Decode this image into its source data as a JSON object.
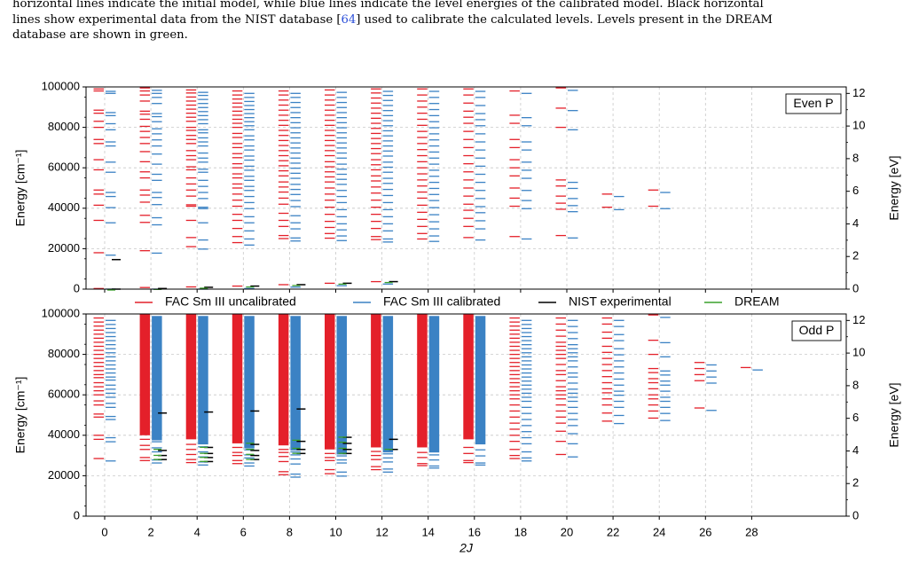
{
  "caption": {
    "line1": "horizontal lines indicate the initial model, while blue lines indicate the level energies of the calibrated model. Black horizontal",
    "line2a": "lines show experimental data from the NIST database [",
    "line2ref": "64",
    "line2b": "] used to calibrate the calculated levels. Levels present in the DREAM",
    "line3": "database are shown in green."
  },
  "colors": {
    "uncalibrated": "#e4202a",
    "calibrated": "#3b82c4",
    "nist": "#000000",
    "dream": "#3aa12c",
    "grid": "#c8c8c8"
  },
  "chart_data": [
    {
      "type": "energy-level diagram",
      "panel_label": "Even P",
      "xlabel": "",
      "ylabel_left": "Energy [cm⁻¹]",
      "ylabel_right": "Energy [eV]",
      "x_ticks": [
        0,
        2,
        4,
        6,
        8,
        10,
        12,
        14,
        16,
        18,
        20,
        22,
        24,
        26,
        28
      ],
      "ylim": [
        0,
        100000
      ],
      "y_ticks": [
        0,
        20000,
        40000,
        60000,
        80000,
        100000
      ],
      "y_tick_labels": [
        "0",
        "20000",
        "40000",
        "60000",
        "80000",
        "100000"
      ],
      "y2_ticks_ev": [
        0,
        2,
        4,
        6,
        8,
        10,
        12
      ],
      "grid": true,
      "columns": [
        {
          "twoJ": 0,
          "levels": [
            300,
            18000,
            34000,
            41500,
            47000,
            49000,
            59000,
            64000,
            72000,
            74000,
            80000,
            83000,
            87000,
            88500,
            98000,
            99000
          ]
        },
        {
          "twoJ": 2,
          "levels": [
            800,
            19000,
            33000,
            36500,
            43000,
            46500,
            49000,
            55000,
            58000,
            63000,
            68000,
            72000,
            75000,
            78000,
            80500,
            84000,
            86500,
            88000,
            93000,
            96000,
            98000,
            99500
          ]
        },
        {
          "twoJ": 4,
          "levels": [
            1100,
            21000,
            25500,
            34000,
            41000,
            41700,
            46000,
            49000,
            52000,
            55000,
            59000,
            60500,
            64000,
            66000,
            68500,
            72000,
            74000,
            76000,
            78500,
            80000,
            83000,
            85000,
            87000,
            89000,
            91000,
            93000,
            95000,
            97000,
            98500
          ]
        },
        {
          "twoJ": 6,
          "levels": [
            1500,
            23000,
            26000,
            30000,
            34000,
            37000,
            41000,
            44000,
            47000,
            50000,
            52000,
            55000,
            57000,
            60000,
            62000,
            65000,
            67000,
            70000,
            72000,
            75000,
            77000,
            80000,
            82000,
            84000,
            86000,
            88000,
            90000,
            92000,
            94000,
            96000,
            98000
          ]
        },
        {
          "twoJ": 8,
          "levels": [
            2200,
            25000,
            26500,
            31000,
            34000,
            37500,
            42000,
            45000,
            48000,
            50500,
            53000,
            56000,
            58500,
            61000,
            63500,
            66000,
            68500,
            71000,
            73500,
            76000,
            78500,
            81000,
            83500,
            86000,
            88500,
            91000,
            93500,
            96000,
            98000
          ]
        },
        {
          "twoJ": 10,
          "levels": [
            2900,
            25200,
            27500,
            30500,
            33500,
            37000,
            40500,
            44000,
            47000,
            50000,
            53000,
            55500,
            58000,
            60500,
            63000,
            66000,
            68500,
            71000,
            73500,
            76000,
            78500,
            81000,
            83500,
            86000,
            88500,
            91000,
            93500,
            96000,
            98500
          ]
        },
        {
          "twoJ": 12,
          "levels": [
            3700,
            24500,
            26000,
            30000,
            33500,
            37000,
            40500,
            44000,
            47500,
            50500,
            53500,
            56000,
            59000,
            61500,
            64000,
            67000,
            69500,
            72000,
            74500,
            77000,
            79500,
            82000,
            84500,
            87000,
            89500,
            92000,
            94500,
            97000,
            99000
          ]
        },
        {
          "twoJ": 14,
          "levels": [
            24800,
            27500,
            31000,
            34500,
            38000,
            41500,
            45000,
            48000,
            51000,
            54000,
            57000,
            60000,
            63000,
            66000,
            69000,
            72000,
            75000,
            78000,
            81000,
            84000,
            87000,
            90000,
            93000,
            96000,
            99000
          ]
        },
        {
          "twoJ": 16,
          "levels": [
            25500,
            31000,
            35000,
            39000,
            42000,
            46000,
            50000,
            54000,
            58000,
            62000,
            66000,
            70000,
            74000,
            78000,
            82000,
            85000,
            88000,
            92000,
            96000,
            99000
          ]
        },
        {
          "twoJ": 18,
          "levels": [
            26000,
            41000,
            45000,
            50000,
            56000,
            60000,
            64000,
            70000,
            74000,
            82000,
            86000,
            98000
          ]
        },
        {
          "twoJ": 20,
          "levels": [
            26500,
            39500,
            42500,
            46000,
            51000,
            54000,
            80000,
            89500,
            99500
          ]
        },
        {
          "twoJ": 22,
          "levels": [
            40500,
            47000
          ]
        },
        {
          "twoJ": 24,
          "levels": [
            41000,
            49000
          ]
        }
      ],
      "nist_levels": [
        {
          "twoJ": 0,
          "levels": [
            0,
            14600
          ]
        },
        {
          "twoJ": 2,
          "levels": [
            300
          ]
        },
        {
          "twoJ": 4,
          "levels": [
            900
          ]
        },
        {
          "twoJ": 6,
          "levels": [
            1500
          ]
        },
        {
          "twoJ": 8,
          "levels": [
            2200
          ]
        },
        {
          "twoJ": 10,
          "levels": [
            2900
          ]
        },
        {
          "twoJ": 12,
          "levels": [
            3700
          ]
        }
      ],
      "dream_levels": [
        {
          "twoJ": 0,
          "levels": [
            0
          ]
        },
        {
          "twoJ": 2,
          "levels": [
            300
          ]
        },
        {
          "twoJ": 4,
          "levels": [
            900
          ]
        },
        {
          "twoJ": 6,
          "levels": [
            1500
          ]
        },
        {
          "twoJ": 8,
          "levels": [
            2200
          ]
        },
        {
          "twoJ": 10,
          "levels": [
            2900
          ]
        },
        {
          "twoJ": 12,
          "levels": [
            3700
          ]
        }
      ]
    },
    {
      "type": "energy-level diagram",
      "panel_label": "Odd P",
      "xlabel": "2J",
      "ylabel_left": "Energy [cm⁻¹]",
      "ylabel_right": "Energy [eV]",
      "x_ticks": [
        0,
        2,
        4,
        6,
        8,
        10,
        12,
        14,
        16,
        18,
        20,
        22,
        24,
        26,
        28
      ],
      "ylim": [
        0,
        100000
      ],
      "y_ticks": [
        0,
        20000,
        40000,
        60000,
        80000,
        100000
      ],
      "y_tick_labels": [
        "0",
        "20000",
        "40000",
        "60000",
        "80000",
        "100000"
      ],
      "y2_ticks_ev": [
        0,
        2,
        4,
        6,
        8,
        10,
        12
      ],
      "grid": true,
      "columns": [
        {
          "twoJ": 0,
          "levels": [
            28500,
            38000,
            40000,
            49000,
            50500,
            55000,
            57000,
            60000,
            62000,
            64000,
            66000,
            68500,
            70000,
            72000,
            74000,
            76000,
            78000,
            80000,
            82000,
            84000,
            86000,
            88000,
            90000,
            92000,
            94000,
            96000,
            98000
          ]
        },
        {
          "twoJ": 2,
          "dense_min": 40000,
          "levels": [
            27500,
            29000,
            33000,
            35000,
            38000
          ]
        },
        {
          "twoJ": 4,
          "dense_min": 38000,
          "levels": [
            26500,
            28000,
            30500,
            33000,
            35500
          ]
        },
        {
          "twoJ": 6,
          "dense_min": 36000,
          "levels": [
            26000,
            27500,
            30000,
            31500,
            34000
          ]
        },
        {
          "twoJ": 8,
          "dense_min": 35000,
          "levels": [
            20500,
            22000,
            27000,
            29500,
            31500,
            33000
          ]
        },
        {
          "twoJ": 10,
          "dense_min": 33000,
          "levels": [
            21000,
            23000,
            27500,
            29000,
            31000
          ]
        },
        {
          "twoJ": 12,
          "dense_min": 34000,
          "levels": [
            23000,
            24500,
            28000,
            30000,
            32000
          ]
        },
        {
          "twoJ": 14,
          "dense_min": 34000,
          "levels": [
            25000,
            26000,
            29000,
            31500
          ]
        },
        {
          "twoJ": 16,
          "dense_min": 38000,
          "levels": [
            26500,
            27500,
            31000,
            34000
          ]
        },
        {
          "twoJ": 18,
          "levels": [
            28500,
            30000,
            33000,
            37000,
            40000,
            43000,
            46000,
            49000,
            52000,
            55000,
            58000,
            60000,
            62000,
            64000,
            66000,
            68000,
            70000,
            72000,
            74000,
            76000,
            78000,
            80000,
            82000,
            84000,
            86000,
            88000,
            90000,
            92000,
            94000,
            96000,
            98000
          ]
        },
        {
          "twoJ": 20,
          "levels": [
            30500,
            37000,
            42000,
            46000,
            49000,
            52000,
            55000,
            58000,
            60000,
            62000,
            64000,
            67000,
            70000,
            72000,
            75000,
            78000,
            80000,
            82000,
            84000,
            86000,
            89000,
            92000,
            95000,
            98000
          ]
        },
        {
          "twoJ": 22,
          "levels": [
            47000,
            51000,
            55000,
            58000,
            61000,
            63000,
            66000,
            69000,
            72000,
            75000,
            78000,
            81000,
            84000,
            88000,
            91000,
            95000,
            98000
          ]
        },
        {
          "twoJ": 24,
          "levels": [
            48500,
            52000,
            55000,
            58000,
            60000,
            63000,
            66000,
            68000,
            71000,
            73000,
            80000,
            87000,
            99500
          ]
        },
        {
          "twoJ": 26,
          "levels": [
            53500,
            67000,
            70000,
            73000,
            76000
          ]
        },
        {
          "twoJ": 28,
          "levels": [
            73500
          ]
        }
      ],
      "nist_levels": [
        {
          "twoJ": 2,
          "levels": [
            28000,
            30000,
            32500,
            51000
          ]
        },
        {
          "twoJ": 4,
          "levels": [
            27000,
            29000,
            31000,
            34000,
            51500
          ]
        },
        {
          "twoJ": 6,
          "levels": [
            28000,
            30000,
            32500,
            35500,
            52000
          ]
        },
        {
          "twoJ": 8,
          "levels": [
            31000,
            33000,
            37000,
            53000
          ]
        },
        {
          "twoJ": 10,
          "levels": [
            31000,
            33000,
            36000,
            39000
          ]
        },
        {
          "twoJ": 12,
          "levels": [
            33000,
            38000
          ]
        }
      ],
      "dream_levels": [
        {
          "twoJ": 2,
          "levels": [
            28500,
            30500,
            33500
          ]
        },
        {
          "twoJ": 4,
          "levels": [
            27500,
            29500,
            31500,
            34500
          ]
        },
        {
          "twoJ": 6,
          "levels": [
            28500,
            31000,
            33500,
            36500
          ]
        },
        {
          "twoJ": 8,
          "levels": [
            31500,
            34000,
            38000
          ]
        },
        {
          "twoJ": 10,
          "levels": [
            31500,
            34000,
            37000,
            39500
          ]
        },
        {
          "twoJ": 12,
          "levels": [
            33500
          ]
        }
      ]
    }
  ],
  "legend": {
    "uncalibrated": "FAC Sm III uncalibrated",
    "calibrated": "FAC Sm III calibrated",
    "nist": "NIST experimental",
    "dream": "DREAM"
  }
}
